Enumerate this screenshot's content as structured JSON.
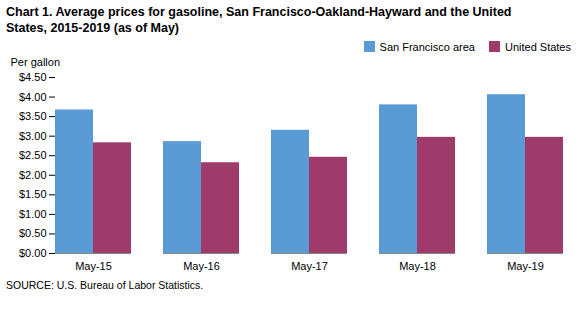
{
  "chart_data": {
    "type": "bar",
    "title": "Chart 1. Average prices for gasoline, San Francisco-Oakland-Hayward and the United\nStates, 2015-2019  (as of May)",
    "ylabel": "Per gallon",
    "caption": "SOURCE: U.S. Bureau of Labor Statistics.",
    "categories": [
      "May-15",
      "May-16",
      "May-17",
      "May-18",
      "May-19"
    ],
    "series": [
      {
        "name": "San Francisco area",
        "color": "#5B9BD5",
        "values": [
          3.67,
          2.86,
          3.15,
          3.8,
          4.06
        ]
      },
      {
        "name": "United States",
        "color": "#9E3B6A",
        "values": [
          2.83,
          2.32,
          2.46,
          2.97,
          2.97
        ]
      }
    ],
    "ylim": [
      0.0,
      4.5
    ],
    "yticks": [
      {
        "value": 0.0,
        "label": "$0.00"
      },
      {
        "value": 0.5,
        "label": "$0.50"
      },
      {
        "value": 1.0,
        "label": "$1.00"
      },
      {
        "value": 1.5,
        "label": "$1.50"
      },
      {
        "value": 2.0,
        "label": "$2.00"
      },
      {
        "value": 2.5,
        "label": "$2.50"
      },
      {
        "value": 3.0,
        "label": "$3.00"
      },
      {
        "value": 3.5,
        "label": "$3.50"
      },
      {
        "value": 4.0,
        "label": "$4.00"
      },
      {
        "value": 4.5,
        "label": "$4.50"
      }
    ],
    "legend": "upper right",
    "grid": false
  }
}
